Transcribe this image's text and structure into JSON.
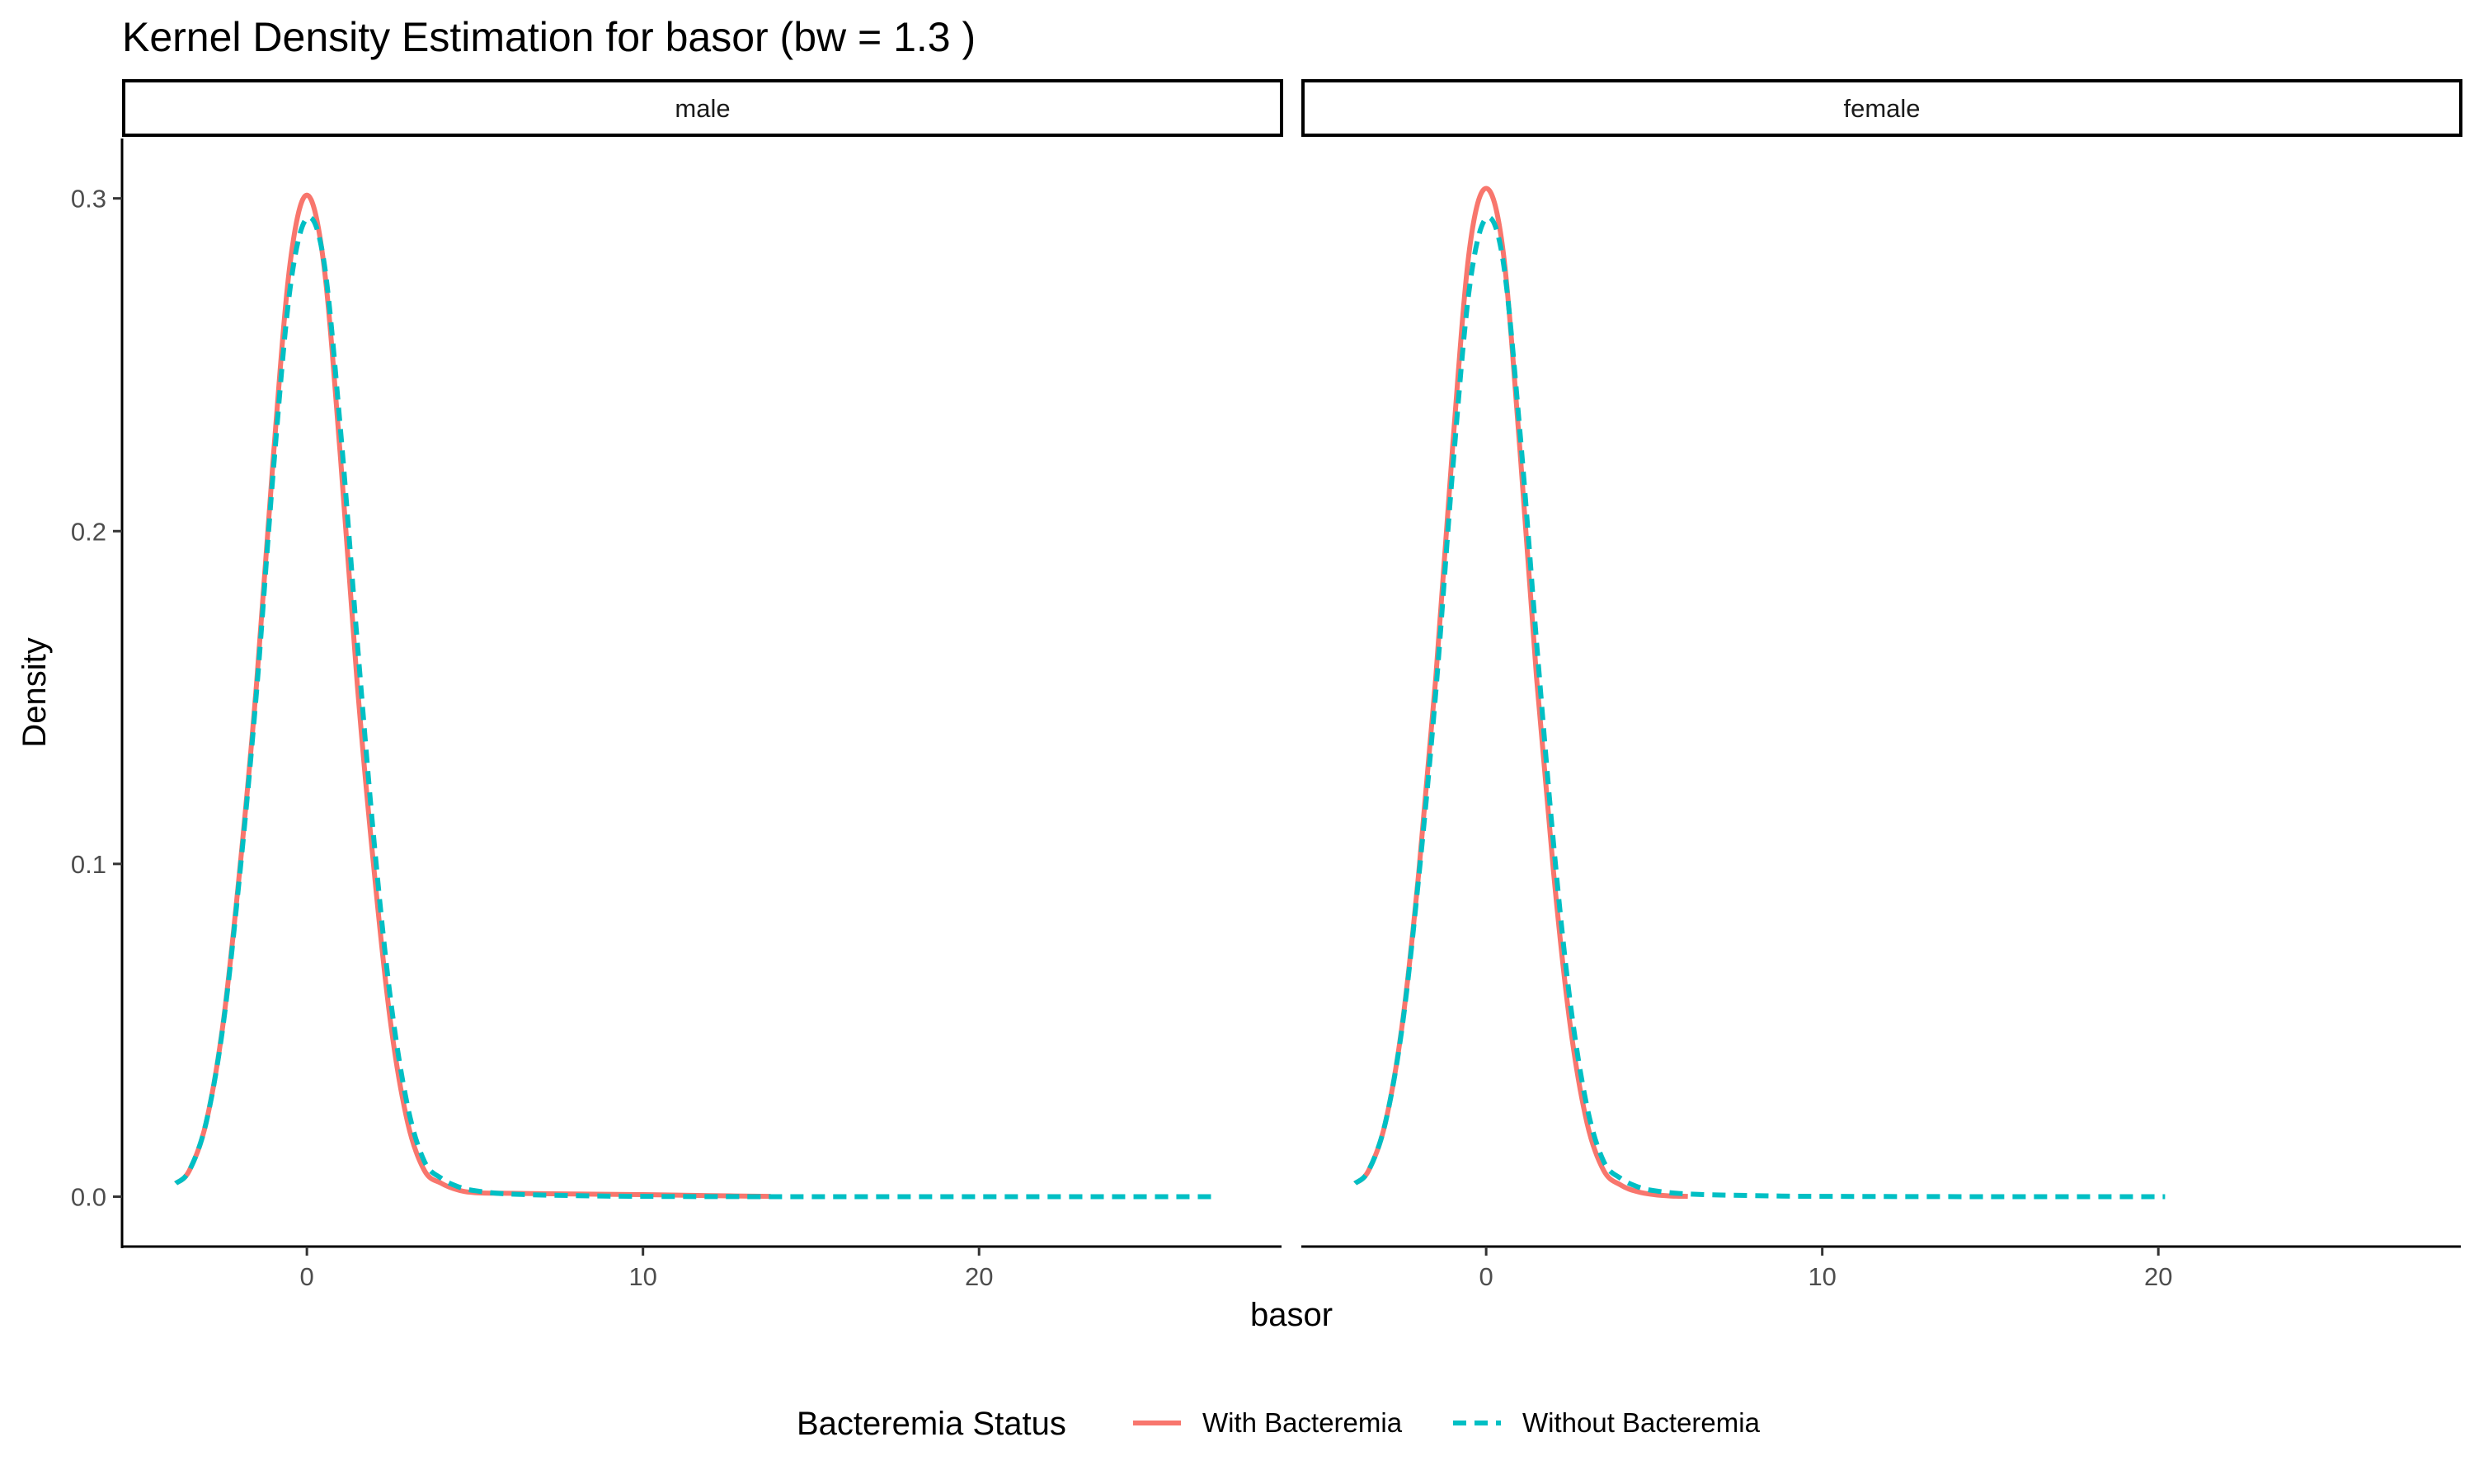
{
  "chart_data": {
    "type": "line",
    "title": "Kernel Density Estimation for basor (bw = 1.3 )",
    "xlabel": "basor",
    "ylabel": "Density",
    "xlim": [
      -5.5,
      29
    ],
    "ylim": [
      -0.015,
      0.318
    ],
    "x_ticks": [
      0,
      10,
      20
    ],
    "y_ticks": [
      0.0,
      0.1,
      0.2,
      0.3
    ],
    "x_tick_labels": [
      "0",
      "10",
      "20"
    ],
    "y_tick_labels": [
      "0.0",
      "0.1",
      "0.2",
      "0.3"
    ],
    "grid": false,
    "legend": {
      "title": "Bacteremia Status",
      "position": "bottom",
      "entries": [
        {
          "label": "With Bacteremia",
          "color": "#F8766D",
          "linetype": "solid"
        },
        {
          "label": "Without Bacteremia",
          "color": "#00BFC4",
          "linetype": "dashed"
        }
      ]
    },
    "facets": [
      {
        "label": "male",
        "series": [
          {
            "name": "With Bacteremia",
            "color": "#F8766D",
            "x": [
              -3.9,
              -3.5,
              -3,
              -2.5,
              -2,
              -1.5,
              -1,
              -0.5,
              0,
              0.5,
              1,
              1.5,
              2,
              2.5,
              3,
              3.5,
              4,
              4.5,
              5,
              6,
              8,
              10,
              12,
              13.8
            ],
            "y": [
              0.004,
              0.0078,
              0.0222,
              0.0516,
              0.0979,
              0.1538,
              0.2221,
              0.2805,
              0.301,
              0.2805,
              0.2221,
              0.1538,
              0.0979,
              0.0516,
              0.0222,
              0.0078,
              0.004,
              0.002,
              0.0012,
              0.001,
              0.0008,
              0.0006,
              0.0003,
              0.0001
            ]
          },
          {
            "name": "Without Bacteremia",
            "color": "#00BFC4",
            "x": [
              -3.9,
              -3.5,
              -3,
              -2.5,
              -2,
              -1.5,
              -1,
              -0.5,
              0,
              0.5,
              1,
              1.5,
              2,
              2.5,
              3,
              3.5,
              4,
              4.5,
              5,
              6,
              8,
              10,
              14,
              20,
              27
            ],
            "y": [
              0.004,
              0.0078,
              0.0222,
              0.051,
              0.0965,
              0.1515,
              0.218,
              0.273,
              0.294,
              0.2815,
              0.2305,
              0.1665,
              0.1065,
              0.0585,
              0.027,
              0.0105,
              0.0055,
              0.003,
              0.0018,
              0.0008,
              0.0003,
              0.0001,
              0.0,
              0.0,
              0.0
            ]
          }
        ]
      },
      {
        "label": "female",
        "series": [
          {
            "name": "With Bacteremia",
            "color": "#F8766D",
            "x": [
              -3.9,
              -3.5,
              -3,
              -2.5,
              -2,
              -1.5,
              -1,
              -0.5,
              0,
              0.5,
              1,
              1.5,
              2,
              2.5,
              3,
              3.5,
              4,
              4.5,
              5,
              5.5,
              6
            ],
            "y": [
              0.004,
              0.0078,
              0.0222,
              0.0516,
              0.0979,
              0.1558,
              0.2251,
              0.2845,
              0.303,
              0.2845,
              0.2251,
              0.1558,
              0.0979,
              0.0516,
              0.0222,
              0.0078,
              0.0035,
              0.0015,
              0.0006,
              0.0002,
              0.0001
            ]
          },
          {
            "name": "Without Bacteremia",
            "color": "#00BFC4",
            "x": [
              -3.9,
              -3.5,
              -3,
              -2.5,
              -2,
              -1.5,
              -1,
              -0.5,
              0,
              0.5,
              1,
              1.5,
              2,
              2.5,
              3,
              3.5,
              4,
              4.5,
              5,
              6,
              8,
              10,
              15,
              20.2
            ],
            "y": [
              0.004,
              0.0078,
              0.0222,
              0.051,
              0.0965,
              0.1515,
              0.218,
              0.273,
              0.294,
              0.2815,
              0.2305,
              0.1665,
              0.1065,
              0.0585,
              0.027,
              0.0105,
              0.0055,
              0.003,
              0.0018,
              0.0008,
              0.0003,
              0.0001,
              0.0,
              0.0
            ]
          }
        ]
      }
    ]
  }
}
